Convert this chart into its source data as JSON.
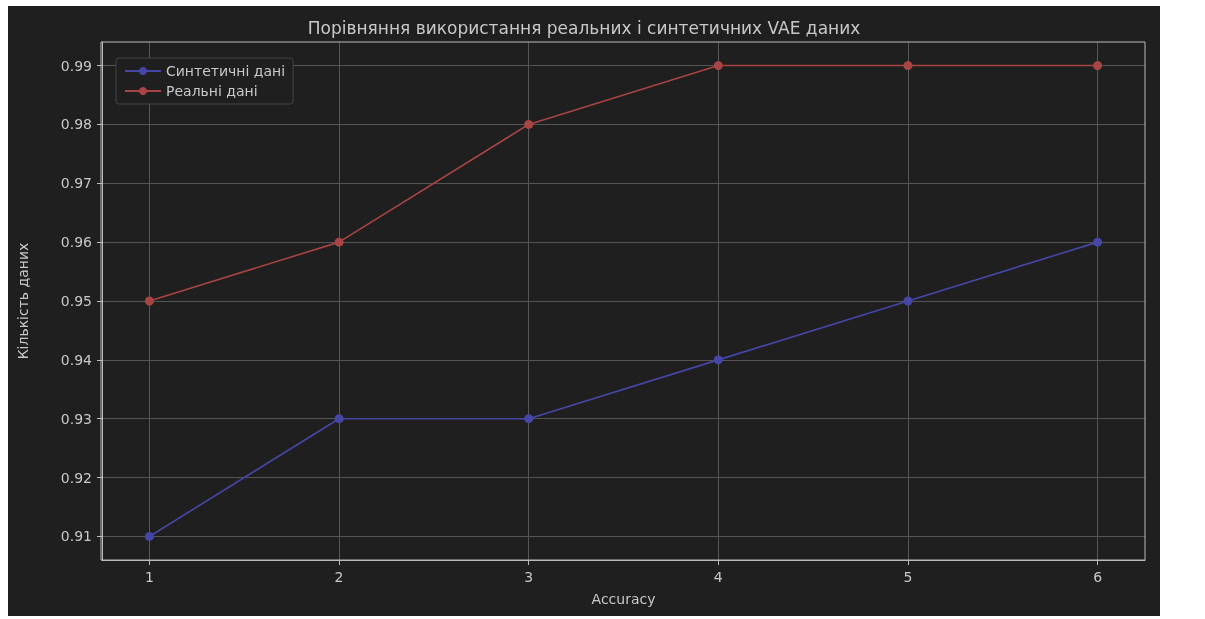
{
  "chart_data": {
    "type": "line",
    "title": "Порівняння використання реальних і синтетичних VAE даних",
    "xlabel": "Accuracy",
    "ylabel": "Кількість даних",
    "x": [
      1,
      2,
      3,
      4,
      5,
      6
    ],
    "series": [
      {
        "name": "Синтетичні дані",
        "color": "#4646a8",
        "values": [
          0.91,
          0.93,
          0.93,
          0.94,
          0.95,
          0.96
        ]
      },
      {
        "name": "Реальні дані",
        "color": "#a84444",
        "values": [
          0.95,
          0.96,
          0.98,
          0.99,
          0.99,
          0.99
        ]
      }
    ],
    "xlim": [
      0.75,
      6.25
    ],
    "xticks": [
      1,
      2,
      3,
      4,
      5,
      6
    ],
    "ylim": [
      0.906,
      0.994
    ],
    "yticks": [
      0.91,
      0.92,
      0.93,
      0.94,
      0.95,
      0.96,
      0.97,
      0.98,
      0.99
    ],
    "grid": true,
    "legend": "top left",
    "marker": "circle",
    "line_style": "solid"
  }
}
